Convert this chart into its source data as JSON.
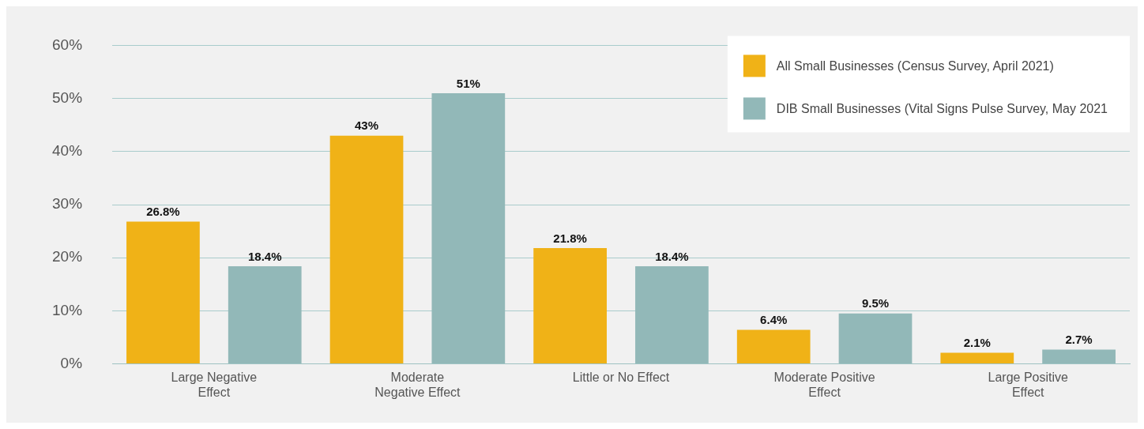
{
  "chart_data": {
    "type": "bar",
    "categories": [
      "Large Negative\nEffect",
      "Moderate\nNegative Effect",
      "Little or No Effect",
      "Moderate Positive\nEffect",
      "Large Positive\nEffect"
    ],
    "series": [
      {
        "name": "All Small Businesses (Census Survey, April 2021)",
        "color": "#f0b217",
        "values": [
          26.8,
          43,
          21.8,
          6.4,
          2.1
        ],
        "value_labels": [
          "26.8%",
          "43%",
          "21.8%",
          "6.4%",
          "2.1%"
        ]
      },
      {
        "name": "DIB Small Businesses (Vital Signs Pulse Survey, May 2021",
        "color": "#92b8b8",
        "values": [
          18.4,
          51,
          18.4,
          9.5,
          2.7
        ],
        "value_labels": [
          "18.4%",
          "51%",
          "18.4%",
          "9.5%",
          "2.7%"
        ]
      }
    ],
    "ylim": [
      0,
      60
    ],
    "yticks": [
      {
        "value": 0,
        "label": "0%"
      },
      {
        "value": 10,
        "label": "10%"
      },
      {
        "value": 20,
        "label": "20%"
      },
      {
        "value": 30,
        "label": "30%"
      },
      {
        "value": 40,
        "label": "40%"
      },
      {
        "value": 50,
        "label": "50%"
      },
      {
        "value": 60,
        "label": "60%"
      }
    ],
    "grid": "y",
    "legend": "top right"
  }
}
